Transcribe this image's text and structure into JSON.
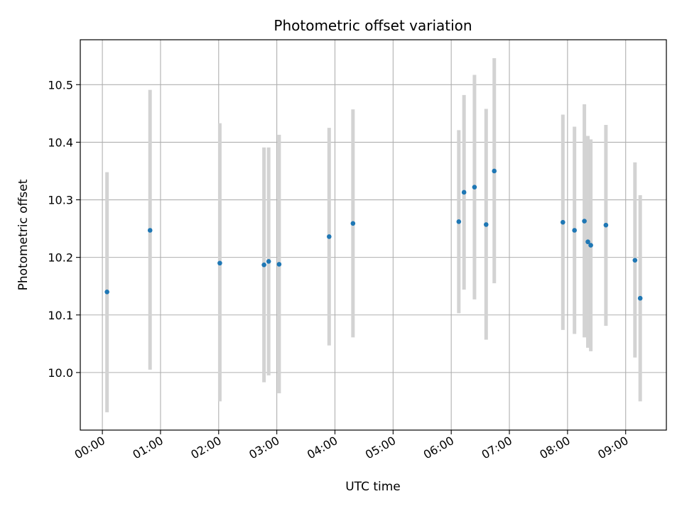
{
  "chart_data": {
    "type": "scatter",
    "title": "Photometric offset variation",
    "xlabel": "UTC time",
    "ylabel": "Photometric offset",
    "x_unit": "hours",
    "xlim": [
      -0.38,
      9.7
    ],
    "ylim": [
      9.9,
      10.578
    ],
    "x_ticks": [
      0,
      1,
      2,
      3,
      4,
      5,
      6,
      7,
      8,
      9
    ],
    "x_tick_labels": [
      "00:00",
      "01:00",
      "02:00",
      "03:00",
      "04:00",
      "05:00",
      "06:00",
      "07:00",
      "08:00",
      "09:00"
    ],
    "y_ticks": [
      10.0,
      10.1,
      10.2,
      10.3,
      10.4,
      10.5
    ],
    "y_tick_labels": [
      "10.0",
      "10.1",
      "10.2",
      "10.3",
      "10.4",
      "10.5"
    ],
    "grid": true,
    "colors": {
      "point": "#1f77b4",
      "errorbar": "#d3d3d3",
      "grid": "#b0b0b0"
    },
    "points": [
      {
        "x": 0.08,
        "y": 10.14,
        "y_low": 9.931,
        "y_high": 10.348
      },
      {
        "x": 0.82,
        "y": 10.247,
        "y_low": 10.005,
        "y_high": 10.491
      },
      {
        "x": 2.02,
        "y": 10.19,
        "y_low": 9.95,
        "y_high": 10.433
      },
      {
        "x": 2.78,
        "y": 10.187,
        "y_low": 9.983,
        "y_high": 10.391
      },
      {
        "x": 2.86,
        "y": 10.193,
        "y_low": 9.995,
        "y_high": 10.391
      },
      {
        "x": 3.04,
        "y": 10.188,
        "y_low": 9.964,
        "y_high": 10.413
      },
      {
        "x": 3.9,
        "y": 10.236,
        "y_low": 10.047,
        "y_high": 10.425
      },
      {
        "x": 4.31,
        "y": 10.259,
        "y_low": 10.061,
        "y_high": 10.457
      },
      {
        "x": 6.13,
        "y": 10.262,
        "y_low": 10.103,
        "y_high": 10.421
      },
      {
        "x": 6.22,
        "y": 10.313,
        "y_low": 10.144,
        "y_high": 10.482
      },
      {
        "x": 6.4,
        "y": 10.322,
        "y_low": 10.127,
        "y_high": 10.517
      },
      {
        "x": 6.6,
        "y": 10.257,
        "y_low": 10.057,
        "y_high": 10.458
      },
      {
        "x": 6.74,
        "y": 10.35,
        "y_low": 10.155,
        "y_high": 10.546
      },
      {
        "x": 7.92,
        "y": 10.261,
        "y_low": 10.074,
        "y_high": 10.448
      },
      {
        "x": 8.12,
        "y": 10.247,
        "y_low": 10.067,
        "y_high": 10.427
      },
      {
        "x": 8.29,
        "y": 10.263,
        "y_low": 10.061,
        "y_high": 10.466
      },
      {
        "x": 8.35,
        "y": 10.227,
        "y_low": 10.043,
        "y_high": 10.411
      },
      {
        "x": 8.4,
        "y": 10.221,
        "y_low": 10.037,
        "y_high": 10.405
      },
      {
        "x": 8.66,
        "y": 10.256,
        "y_low": 10.081,
        "y_high": 10.43
      },
      {
        "x": 9.16,
        "y": 10.195,
        "y_low": 10.026,
        "y_high": 10.365
      },
      {
        "x": 9.25,
        "y": 10.129,
        "y_low": 9.95,
        "y_high": 10.308
      }
    ]
  }
}
